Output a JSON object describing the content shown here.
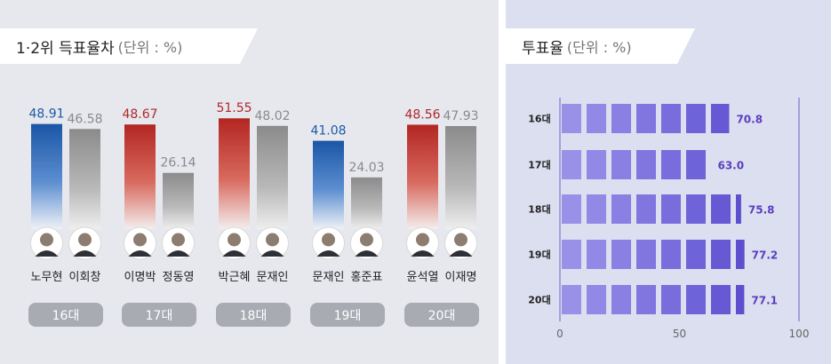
{
  "left_title": {
    "main": "1·2위 득표율차",
    "unit": "(단위 : %)"
  },
  "right_title": {
    "main": "투표율",
    "unit": "(단위 : %)"
  },
  "colors": {
    "blue": "#1d5aa8",
    "red": "#b0282a",
    "gray": "#8a8a8a",
    "purple": "#6b5fd9",
    "purple_text": "#5a3fc0"
  },
  "chart_data": [
    {
      "type": "bar",
      "title": "1·2위 득표율차",
      "unit": "%",
      "groups": [
        {
          "label": "16대",
          "candidates": [
            {
              "name": "노무현",
              "value": 48.91,
              "color": "blue"
            },
            {
              "name": "이회창",
              "value": 46.58,
              "color": "gray"
            }
          ]
        },
        {
          "label": "17대",
          "candidates": [
            {
              "name": "이명박",
              "value": 48.67,
              "color": "red"
            },
            {
              "name": "정동영",
              "value": 26.14,
              "color": "gray"
            }
          ]
        },
        {
          "label": "18대",
          "candidates": [
            {
              "name": "박근혜",
              "value": 51.55,
              "color": "red"
            },
            {
              "name": "문재인",
              "value": 48.02,
              "color": "gray"
            }
          ]
        },
        {
          "label": "19대",
          "candidates": [
            {
              "name": "문재인",
              "value": 41.08,
              "color": "blue"
            },
            {
              "name": "홍준표",
              "value": 24.03,
              "color": "gray"
            }
          ]
        },
        {
          "label": "20대",
          "candidates": [
            {
              "name": "윤석열",
              "value": 48.56,
              "color": "red"
            },
            {
              "name": "이재명",
              "value": 47.93,
              "color": "gray"
            }
          ]
        }
      ]
    },
    {
      "type": "bar",
      "orientation": "horizontal",
      "title": "투표율",
      "unit": "%",
      "categories": [
        "16대",
        "17대",
        "18대",
        "19대",
        "20대"
      ],
      "values": [
        70.8,
        63.0,
        75.8,
        77.2,
        77.1
      ],
      "value_labels": [
        "70.8",
        "63.0",
        "75.8",
        "77.2",
        "77.1"
      ],
      "xlim": [
        0,
        100
      ],
      "xticks": [
        "0",
        "50",
        "100"
      ]
    }
  ]
}
